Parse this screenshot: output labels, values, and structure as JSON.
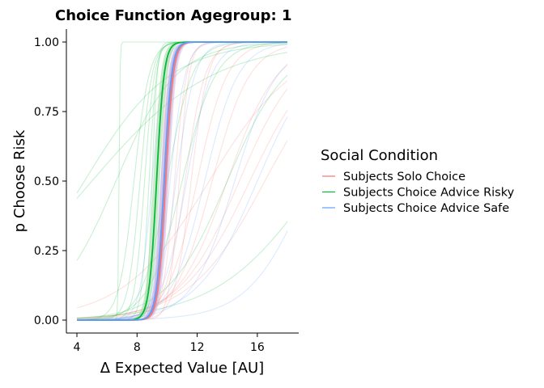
{
  "chart_data": {
    "type": "line",
    "title": "Choice Function Agegroup: 1",
    "xlabel": "Δ Expected Value [AU]",
    "ylabel": "p Choose Risk",
    "xlim": [
      4,
      18
    ],
    "ylim": [
      0,
      1
    ],
    "x_ticks": [
      "4",
      "8",
      "12",
      "16"
    ],
    "y_ticks": [
      "0.00",
      "0.25",
      "0.50",
      "0.75",
      "1.00"
    ],
    "grid": false,
    "legend": {
      "title": "Social Condition",
      "position": "right",
      "entries": [
        "Subjects Solo Choice",
        "Subjects Choice Advice Risky",
        "Subjects Choice Advice Safe"
      ]
    },
    "series": [
      {
        "name": "Subjects Solo Choice",
        "color": "#F8766D",
        "midpoint": 9.9,
        "slope": 4.0,
        "x": [
          4,
          8,
          9,
          9.5,
          9.9,
          10.3,
          11,
          12,
          18
        ],
        "y": [
          0.0,
          0.0,
          0.03,
          0.17,
          0.5,
          0.83,
          0.99,
          1.0,
          1.0
        ]
      },
      {
        "name": "Subjects Choice Advice Risky",
        "color": "#00BA38",
        "midpoint": 9.3,
        "slope": 4.0,
        "x": [
          4,
          8,
          8.5,
          9.0,
          9.3,
          9.6,
          10.2,
          11,
          18
        ],
        "y": [
          0.0,
          0.01,
          0.04,
          0.23,
          0.5,
          0.77,
          0.97,
          1.0,
          1.0
        ]
      },
      {
        "name": "Subjects Choice Advice Safe",
        "color": "#619CFF",
        "midpoint": 9.8,
        "slope": 4.0,
        "x": [
          4,
          8,
          9,
          9.5,
          9.8,
          10.1,
          11,
          12,
          18
        ],
        "y": [
          0.0,
          0.0,
          0.04,
          0.23,
          0.5,
          0.77,
          0.99,
          1.0,
          1.0
        ]
      }
    ],
    "individual_fits": [
      {
        "group": "Subjects Solo Choice",
        "curves": [
          {
            "m": 11.2,
            "s": 1.5
          },
          {
            "m": 13.0,
            "s": 0.8
          },
          {
            "m": 15.5,
            "s": 0.45
          },
          {
            "m": 10.5,
            "s": 2.5
          },
          {
            "m": 12.0,
            "s": 1.0
          },
          {
            "m": 14.0,
            "s": 0.6
          },
          {
            "m": 16.5,
            "s": 0.4
          },
          {
            "m": 12.8,
            "s": 0.35
          },
          {
            "m": 10.8,
            "s": 3.0
          },
          {
            "m": 11.6,
            "s": 1.8
          },
          {
            "m": 14.8,
            "s": 0.5
          },
          {
            "m": 9.6,
            "s": 5.0
          }
        ]
      },
      {
        "group": "Subjects Choice Advice Risky",
        "curves": [
          {
            "m": 4.5,
            "s": 0.35
          },
          {
            "m": 6.6,
            "s": 0.5
          },
          {
            "m": 5.0,
            "s": 0.25
          },
          {
            "m": 7.8,
            "s": 2.0
          },
          {
            "m": 8.5,
            "s": 3.0
          },
          {
            "m": 9.0,
            "s": 6.0
          },
          {
            "m": 10.0,
            "s": 1.2
          },
          {
            "m": 11.0,
            "s": 0.9
          },
          {
            "m": 6.8,
            "s": 30.0
          },
          {
            "m": 8.8,
            "s": 4.0
          },
          {
            "m": 14.0,
            "s": 0.5
          },
          {
            "m": 8.2,
            "s": 2.5
          },
          {
            "m": 20.0,
            "s": 0.3
          }
        ]
      },
      {
        "group": "Subjects Choice Advice Safe",
        "curves": [
          {
            "m": 9.6,
            "s": 3.5
          },
          {
            "m": 10.2,
            "s": 2.0
          },
          {
            "m": 12.5,
            "s": 0.9
          },
          {
            "m": 16.0,
            "s": 0.5
          },
          {
            "m": 9.0,
            "s": 2.5
          },
          {
            "m": 14.5,
            "s": 0.7
          },
          {
            "m": 10.6,
            "s": 1.6
          },
          {
            "m": 11.3,
            "s": 1.2
          },
          {
            "m": 19.5,
            "s": 0.5
          }
        ]
      }
    ]
  }
}
